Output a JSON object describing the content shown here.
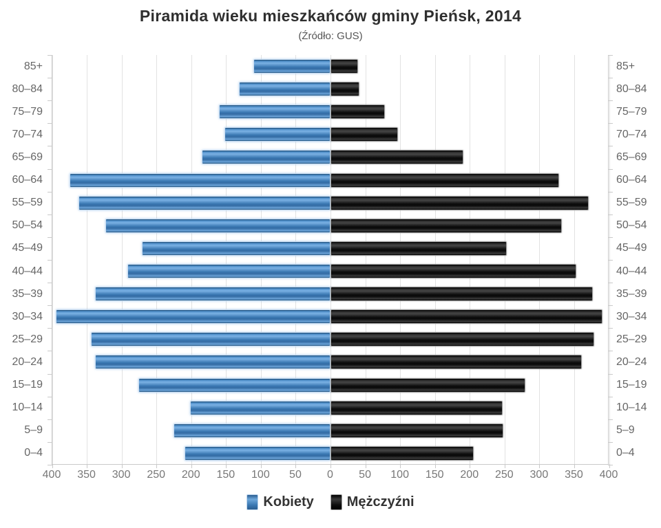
{
  "title": "Piramida wieku mieszkańców gminy Pieńsk, 2014",
  "subtitle": "(Źródło: GUS)",
  "legend": {
    "items": [
      {
        "label": "Kobiety",
        "color": "#4a86c2"
      },
      {
        "label": "Mężczyźni",
        "color": "#141414"
      }
    ]
  },
  "chart_data": {
    "type": "bar",
    "variant": "population-pyramid",
    "orientation": "horizontal",
    "title": "Piramida wieku mieszkańców gminy Pieńsk, 2014",
    "subtitle": "(Źródło: GUS)",
    "categories": [
      "85+",
      "80–84",
      "75–79",
      "70–74",
      "65–69",
      "60–64",
      "55–59",
      "50–54",
      "45–49",
      "40–44",
      "35–39",
      "30–34",
      "25–29",
      "20–24",
      "15–19",
      "10–14",
      "5–9",
      "0–4"
    ],
    "series": [
      {
        "name": "Kobiety",
        "side": "left",
        "color": "#4a86c2",
        "values": [
          110,
          131,
          160,
          152,
          184,
          374,
          361,
          323,
          270,
          291,
          338,
          394,
          344,
          338,
          275,
          201,
          225,
          209
        ]
      },
      {
        "name": "Mężczyźni",
        "side": "right",
        "color": "#141414",
        "values": [
          40,
          42,
          79,
          97,
          191,
          329,
          371,
          333,
          254,
          354,
          377,
          391,
          379,
          361,
          280,
          248,
          249,
          206
        ]
      }
    ],
    "x_axis": {
      "max_each_side": 400,
      "tick_interval": 50,
      "tick_labels": [
        "400",
        "350",
        "300",
        "250",
        "200",
        "150",
        "100",
        "50",
        "0",
        "50",
        "100",
        "150",
        "200",
        "250",
        "300",
        "350",
        "400"
      ]
    },
    "grid": true,
    "legend_position": "bottom",
    "gridline_color": "#e2e2e2",
    "axis_line_color": "#c9c9c9",
    "label_color": "#666666"
  }
}
